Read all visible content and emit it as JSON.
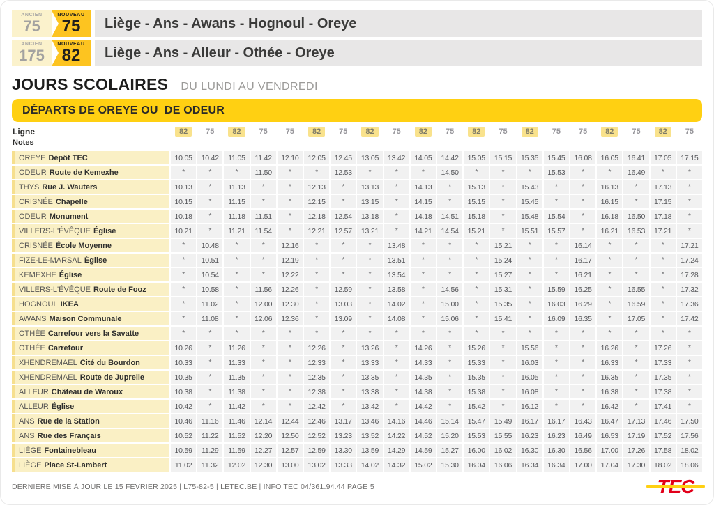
{
  "header": {
    "routes": [
      {
        "ancien_label": "ANCIEN",
        "ancien": "75",
        "nouveau_label": "NOUVEAU",
        "nouveau": "75",
        "name": "Liège - Ans - Awans - Hognoul - Oreye"
      },
      {
        "ancien_label": "ANCIEN",
        "ancien": "175",
        "nouveau_label": "NOUVEAU",
        "nouveau": "82",
        "name": "Liège - Ans - Alleur - Othée - Oreye"
      }
    ]
  },
  "section": {
    "title": "JOURS SCOLAIRES",
    "subtitle": "DU LUNDI AU VENDREDI"
  },
  "banner": {
    "title": "DÉPARTS DE OREYE OU  DE ODEUR"
  },
  "table": {
    "ligne_label": "Ligne",
    "notes_label": "Notes",
    "highlight_line": "82",
    "lines": [
      "82",
      "75",
      "82",
      "75",
      "75",
      "82",
      "75",
      "82",
      "75",
      "82",
      "75",
      "82",
      "75",
      "82",
      "75",
      "75",
      "82",
      "75",
      "82",
      "75"
    ],
    "rows": [
      {
        "stop": "OREYE",
        "name": "Dépôt TEC",
        "times": [
          "10.05",
          "10.42",
          "11.05",
          "11.42",
          "12.10",
          "12.05",
          "12.45",
          "13.05",
          "13.42",
          "14.05",
          "14.42",
          "15.05",
          "15.15",
          "15.35",
          "15.45",
          "16.08",
          "16.05",
          "16.41",
          "17.05",
          "17.15"
        ]
      },
      {
        "stop": "ODEUR",
        "name": "Route de Kemexhe",
        "times": [
          "*",
          "*",
          "*",
          "11.50",
          "*",
          "*",
          "12.53",
          "*",
          "*",
          "*",
          "14.50",
          "*",
          "*",
          "*",
          "15.53",
          "*",
          "*",
          "16.49",
          "*",
          "*"
        ]
      },
      {
        "stop": "THYS",
        "name": "Rue J. Wauters",
        "times": [
          "10.13",
          "*",
          "11.13",
          "*",
          "*",
          "12.13",
          "*",
          "13.13",
          "*",
          "14.13",
          "*",
          "15.13",
          "*",
          "15.43",
          "*",
          "*",
          "16.13",
          "*",
          "17.13",
          "*"
        ]
      },
      {
        "stop": "CRISNÉE",
        "name": "Chapelle",
        "times": [
          "10.15",
          "*",
          "11.15",
          "*",
          "*",
          "12.15",
          "*",
          "13.15",
          "*",
          "14.15",
          "*",
          "15.15",
          "*",
          "15.45",
          "*",
          "*",
          "16.15",
          "*",
          "17.15",
          "*"
        ]
      },
      {
        "stop": "ODEUR",
        "name": "Monument",
        "times": [
          "10.18",
          "*",
          "11.18",
          "11.51",
          "*",
          "12.18",
          "12.54",
          "13.18",
          "*",
          "14.18",
          "14.51",
          "15.18",
          "*",
          "15.48",
          "15.54",
          "*",
          "16.18",
          "16.50",
          "17.18",
          "*"
        ]
      },
      {
        "stop": "VILLERS-L'ÉVÊQUE",
        "name": "Église",
        "times": [
          "10.21",
          "*",
          "11.21",
          "11.54",
          "*",
          "12.21",
          "12.57",
          "13.21",
          "*",
          "14.21",
          "14.54",
          "15.21",
          "*",
          "15.51",
          "15.57",
          "*",
          "16.21",
          "16.53",
          "17.21",
          "*"
        ]
      },
      {
        "stop": "CRISNÉE",
        "name": "École Moyenne",
        "times": [
          "*",
          "10.48",
          "*",
          "*",
          "12.16",
          "*",
          "*",
          "*",
          "13.48",
          "*",
          "*",
          "*",
          "15.21",
          "*",
          "*",
          "16.14",
          "*",
          "*",
          "*",
          "17.21"
        ]
      },
      {
        "stop": "FIZE-LE-MARSAL",
        "name": "Église",
        "times": [
          "*",
          "10.51",
          "*",
          "*",
          "12.19",
          "*",
          "*",
          "*",
          "13.51",
          "*",
          "*",
          "*",
          "15.24",
          "*",
          "*",
          "16.17",
          "*",
          "*",
          "*",
          "17.24"
        ]
      },
      {
        "stop": "KEMEXHE",
        "name": "Église",
        "times": [
          "*",
          "10.54",
          "*",
          "*",
          "12.22",
          "*",
          "*",
          "*",
          "13.54",
          "*",
          "*",
          "*",
          "15.27",
          "*",
          "*",
          "16.21",
          "*",
          "*",
          "*",
          "17.28"
        ]
      },
      {
        "stop": "VILLERS-L'ÉVÊQUE",
        "name": "Route de Fooz",
        "times": [
          "*",
          "10.58",
          "*",
          "11.56",
          "12.26",
          "*",
          "12.59",
          "*",
          "13.58",
          "*",
          "14.56",
          "*",
          "15.31",
          "*",
          "15.59",
          "16.25",
          "*",
          "16.55",
          "*",
          "17.32"
        ]
      },
      {
        "stop": "HOGNOUL",
        "name": "IKEA",
        "times": [
          "*",
          "11.02",
          "*",
          "12.00",
          "12.30",
          "*",
          "13.03",
          "*",
          "14.02",
          "*",
          "15.00",
          "*",
          "15.35",
          "*",
          "16.03",
          "16.29",
          "*",
          "16.59",
          "*",
          "17.36"
        ]
      },
      {
        "stop": "AWANS",
        "name": "Maison Communale",
        "times": [
          "*",
          "11.08",
          "*",
          "12.06",
          "12.36",
          "*",
          "13.09",
          "*",
          "14.08",
          "*",
          "15.06",
          "*",
          "15.41",
          "*",
          "16.09",
          "16.35",
          "*",
          "17.05",
          "*",
          "17.42"
        ]
      },
      {
        "stop": "OTHÉE",
        "name": "Carrefour vers la Savatte",
        "times": [
          "*",
          "*",
          "*",
          "*",
          "*",
          "*",
          "*",
          "*",
          "*",
          "*",
          "*",
          "*",
          "*",
          "*",
          "*",
          "*",
          "*",
          "*",
          "*",
          "*"
        ]
      },
      {
        "stop": "OTHÉE",
        "name": "Carrefour",
        "times": [
          "10.26",
          "*",
          "11.26",
          "*",
          "*",
          "12.26",
          "*",
          "13.26",
          "*",
          "14.26",
          "*",
          "15.26",
          "*",
          "15.56",
          "*",
          "*",
          "16.26",
          "*",
          "17.26",
          "*"
        ]
      },
      {
        "stop": "XHENDREMAEL",
        "name": "Cité du Bourdon",
        "times": [
          "10.33",
          "*",
          "11.33",
          "*",
          "*",
          "12.33",
          "*",
          "13.33",
          "*",
          "14.33",
          "*",
          "15.33",
          "*",
          "16.03",
          "*",
          "*",
          "16.33",
          "*",
          "17.33",
          "*"
        ]
      },
      {
        "stop": "XHENDREMAEL",
        "name": "Route de Juprelle",
        "times": [
          "10.35",
          "*",
          "11.35",
          "*",
          "*",
          "12.35",
          "*",
          "13.35",
          "*",
          "14.35",
          "*",
          "15.35",
          "*",
          "16.05",
          "*",
          "*",
          "16.35",
          "*",
          "17.35",
          "*"
        ]
      },
      {
        "stop": "ALLEUR",
        "name": "Château de Waroux",
        "times": [
          "10.38",
          "*",
          "11.38",
          "*",
          "*",
          "12.38",
          "*",
          "13.38",
          "*",
          "14.38",
          "*",
          "15.38",
          "*",
          "16.08",
          "*",
          "*",
          "16.38",
          "*",
          "17.38",
          "*"
        ]
      },
      {
        "stop": "ALLEUR",
        "name": "Église",
        "times": [
          "10.42",
          "*",
          "11.42",
          "*",
          "*",
          "12.42",
          "*",
          "13.42",
          "*",
          "14.42",
          "*",
          "15.42",
          "*",
          "16.12",
          "*",
          "*",
          "16.42",
          "*",
          "17.41",
          "*"
        ]
      },
      {
        "stop": "ANS",
        "name": "Rue de la Station",
        "times": [
          "10.46",
          "11.16",
          "11.46",
          "12.14",
          "12.44",
          "12.46",
          "13.17",
          "13.46",
          "14.16",
          "14.46",
          "15.14",
          "15.47",
          "15.49",
          "16.17",
          "16.17",
          "16.43",
          "16.47",
          "17.13",
          "17.46",
          "17.50"
        ]
      },
      {
        "stop": "ANS",
        "name": "Rue des Français",
        "times": [
          "10.52",
          "11.22",
          "11.52",
          "12.20",
          "12.50",
          "12.52",
          "13.23",
          "13.52",
          "14.22",
          "14.52",
          "15.20",
          "15.53",
          "15.55",
          "16.23",
          "16.23",
          "16.49",
          "16.53",
          "17.19",
          "17.52",
          "17.56"
        ]
      },
      {
        "stop": "LIÈGE",
        "name": "Fontainebleau",
        "times": [
          "10.59",
          "11.29",
          "11.59",
          "12.27",
          "12.57",
          "12.59",
          "13.30",
          "13.59",
          "14.29",
          "14.59",
          "15.27",
          "16.00",
          "16.02",
          "16.30",
          "16.30",
          "16.56",
          "17.00",
          "17.26",
          "17.58",
          "18.02"
        ]
      },
      {
        "stop": "LIÈGE",
        "name": "Place St-Lambert",
        "times": [
          "11.02",
          "11.32",
          "12.02",
          "12.30",
          "13.00",
          "13.02",
          "13.33",
          "14.02",
          "14.32",
          "15.02",
          "15.30",
          "16.04",
          "16.06",
          "16.34",
          "16.34",
          "17.00",
          "17.04",
          "17.30",
          "18.02",
          "18.06"
        ]
      }
    ]
  },
  "footer": {
    "info": "DERNIÈRE MISE À JOUR LE 15 FÉVRIER 2025  |  L75-82-5  |  LETEC.BE  |  INFO TEC 04/361.94.44",
    "page": "PAGE 5",
    "logo": "TEC"
  },
  "colors": {
    "tec-yellow": "#FFD012",
    "badge-gold": "#FDC420",
    "badge-pale": "#FBF2CC",
    "highlight-yellow": "#F9E28C",
    "row-cream": "#FAF0C5",
    "row-cream-edge": "#F6DF8E",
    "cell-gray": "#F1F1F1",
    "strip-gray": "#E8E7E7",
    "text-dark": "#2F2F2E",
    "text-gray": "#9C9B9B",
    "time-text": "#55565A",
    "tec-red": "#E2001A"
  }
}
